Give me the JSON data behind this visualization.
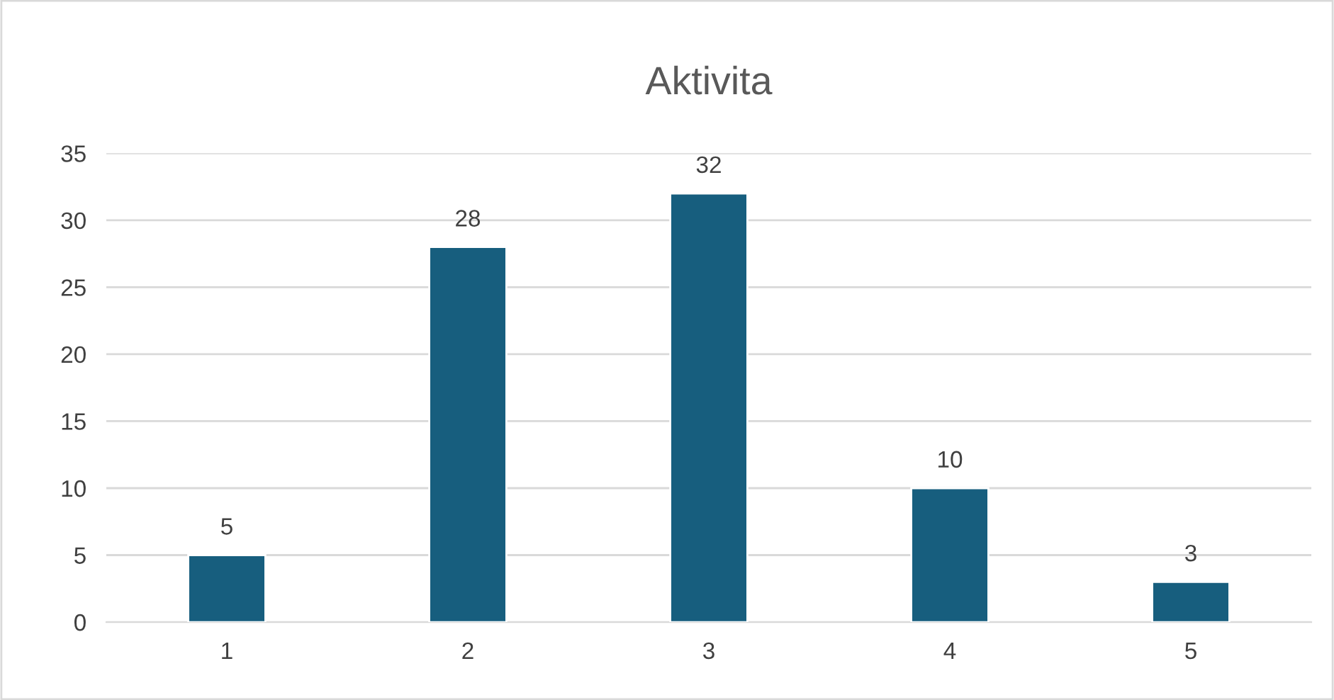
{
  "chart_data": {
    "type": "bar",
    "title": "Aktivita",
    "categories": [
      "1",
      "2",
      "3",
      "4",
      "5"
    ],
    "values": [
      5,
      28,
      32,
      10,
      3
    ],
    "color": "#175e7e",
    "ylim": [
      0,
      35
    ],
    "yticks": [
      0,
      5,
      10,
      15,
      20,
      25,
      30,
      35
    ],
    "grid": "y",
    "data_labels": true,
    "legend": false
  }
}
